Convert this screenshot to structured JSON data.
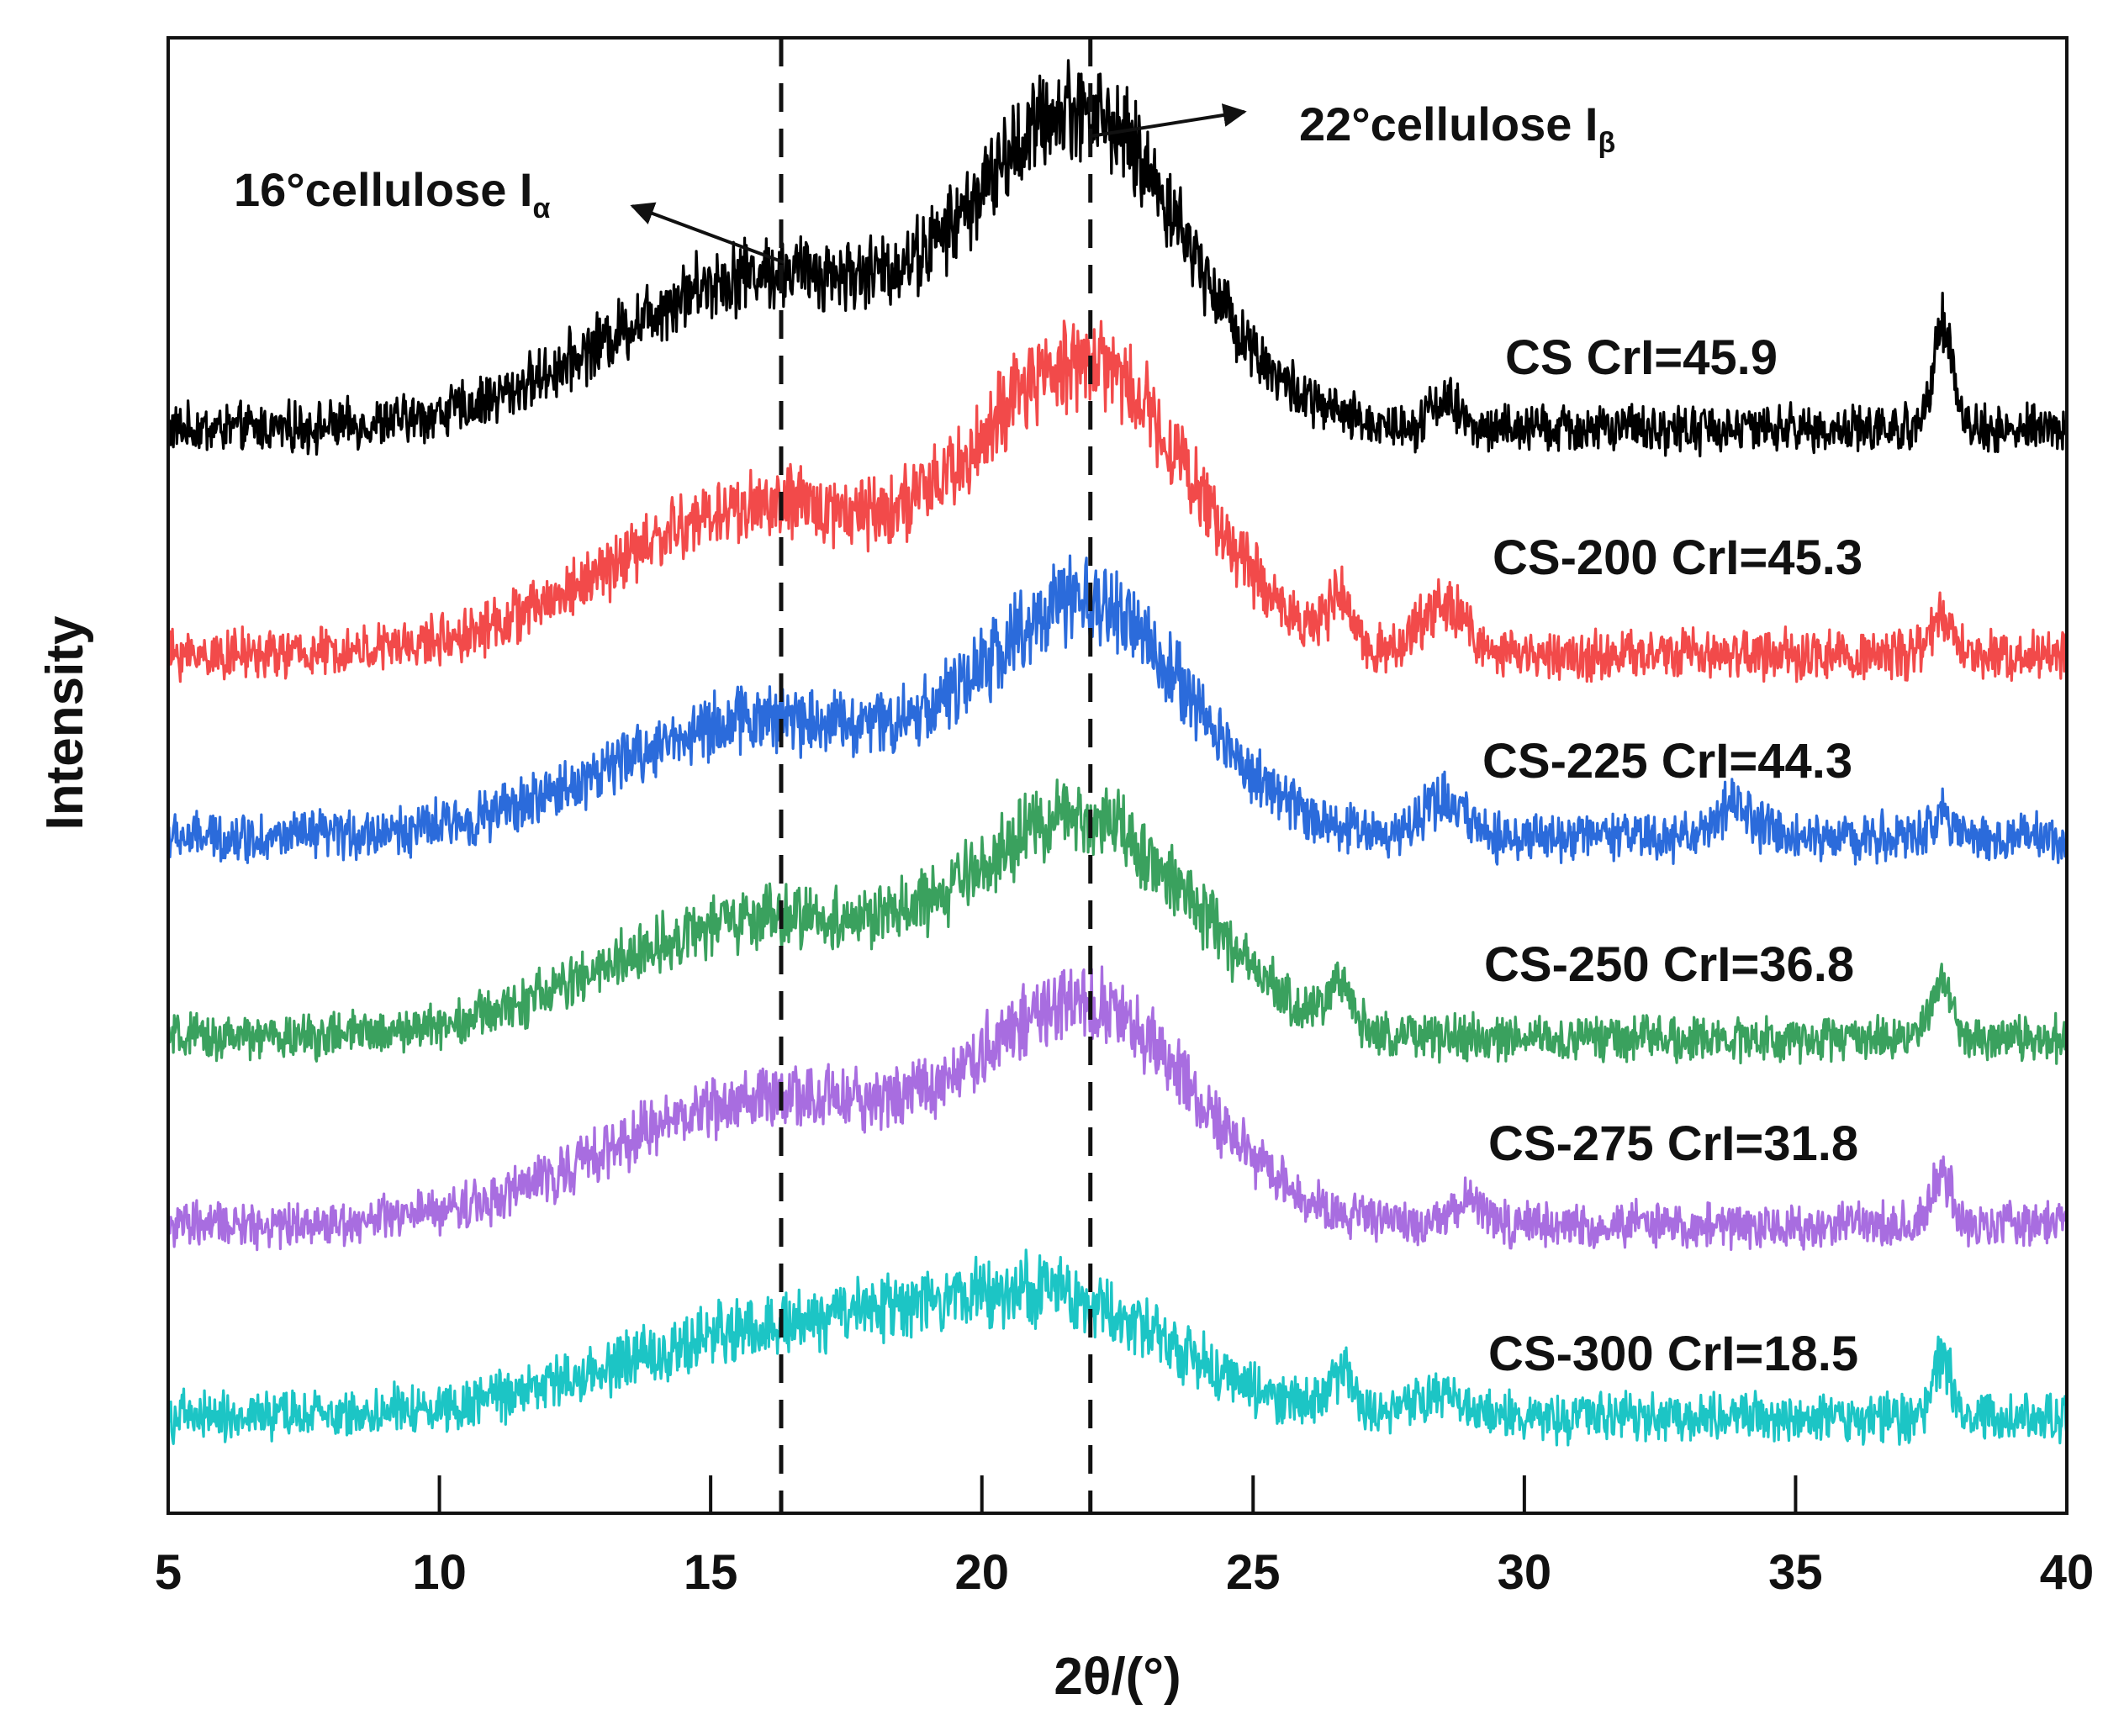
{
  "chart_data": {
    "type": "line",
    "title": "",
    "xlabel": "2θ/(°)",
    "ylabel": "Intensity",
    "xlim": [
      5,
      40
    ],
    "ylim": [
      0,
      100
    ],
    "xticks": [
      5,
      10,
      15,
      20,
      25,
      30,
      35,
      40
    ],
    "grid": false,
    "legend": "inline labels at right",
    "reference_lines": [
      {
        "x": 16.3,
        "style": "dashed"
      },
      {
        "x": 22,
        "style": "dashed"
      }
    ],
    "annotations": [
      {
        "text": "16°cellulose I",
        "subscript": "α",
        "x": 16.2
      },
      {
        "text": "22°cellulose I",
        "subscript": "β",
        "x": 22
      }
    ],
    "series": [
      {
        "name": "CS",
        "label": "CS  CrI=45.9",
        "color": "#000000",
        "baseline": 73.5,
        "peaks": [
          {
            "x": 16.0,
            "height": 10.5,
            "width": 2.8
          },
          {
            "x": 21.9,
            "height": 20.5,
            "width": 1.9
          },
          {
            "x": 28.5,
            "height": 2.0,
            "width": 0.25
          },
          {
            "x": 37.7,
            "height": 7.5,
            "width": 0.18
          }
        ],
        "noise": 1.3
      },
      {
        "name": "CS-200",
        "label": "CS-200  CrI=45.3",
        "color": "#f24a4a",
        "baseline": 58.2,
        "peaks": [
          {
            "x": 16.0,
            "height": 10.0,
            "width": 2.8
          },
          {
            "x": 22.0,
            "height": 19.0,
            "width": 1.9
          },
          {
            "x": 26.6,
            "height": 2.8,
            "width": 0.2
          },
          {
            "x": 28.5,
            "height": 3.5,
            "width": 0.4
          },
          {
            "x": 37.7,
            "height": 2.5,
            "width": 0.18
          }
        ],
        "noise": 1.3
      },
      {
        "name": "CS-225",
        "label": "CS-225  CrI=44.3",
        "color": "#2b6bdb",
        "baseline": 45.8,
        "peaks": [
          {
            "x": 16.0,
            "height": 8.0,
            "width": 2.8
          },
          {
            "x": 22.0,
            "height": 15.0,
            "width": 1.9
          },
          {
            "x": 28.5,
            "height": 2.5,
            "width": 0.4
          },
          {
            "x": 33.9,
            "height": 2.0,
            "width": 0.35
          },
          {
            "x": 37.7,
            "height": 2.0,
            "width": 0.18
          }
        ],
        "noise": 1.3
      },
      {
        "name": "CS-250",
        "label": "CS-250  CrI=36.8",
        "color": "#3aa15e",
        "baseline": 32.2,
        "peaks": [
          {
            "x": 16.0,
            "height": 8.0,
            "width": 2.9
          },
          {
            "x": 22.0,
            "height": 14.0,
            "width": 2.0
          },
          {
            "x": 26.6,
            "height": 3.0,
            "width": 0.2
          },
          {
            "x": 37.7,
            "height": 4.0,
            "width": 0.18
          }
        ],
        "noise": 1.2
      },
      {
        "name": "CS-275",
        "label": "CS-275  CrI=31.8",
        "color": "#a86de0",
        "baseline": 19.5,
        "peaks": [
          {
            "x": 16.0,
            "height": 8.5,
            "width": 2.9
          },
          {
            "x": 22.0,
            "height": 14.0,
            "width": 2.0
          },
          {
            "x": 29.0,
            "height": 2.0,
            "width": 0.25
          },
          {
            "x": 37.7,
            "height": 3.5,
            "width": 0.18
          }
        ],
        "noise": 1.2
      },
      {
        "name": "CS-300",
        "label": "CS-300  CrI=18.5",
        "color": "#1cc5c5",
        "baseline": 6.5,
        "peaks": [
          {
            "x": 16.5,
            "height": 6.0,
            "width": 3.2
          },
          {
            "x": 21.5,
            "height": 6.5,
            "width": 2.2
          },
          {
            "x": 26.6,
            "height": 2.5,
            "width": 0.25
          },
          {
            "x": 28.5,
            "height": 1.5,
            "width": 0.4
          },
          {
            "x": 37.7,
            "height": 4.0,
            "width": 0.18
          }
        ],
        "noise": 1.3
      }
    ]
  }
}
